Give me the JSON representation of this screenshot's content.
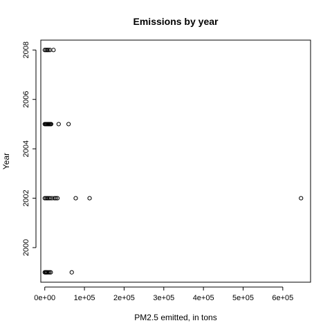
{
  "chart_data": {
    "type": "scatter",
    "title": "Emissions by year",
    "xlabel": "PM2.5 emitted, in tons",
    "ylabel": "Year",
    "xlim": [
      -10000,
      670000
    ],
    "ylim": [
      1998.6,
      2008.4
    ],
    "x_ticks": [
      0,
      100000,
      200000,
      300000,
      400000,
      500000,
      600000
    ],
    "x_tick_labels": [
      "0e+00",
      "1e+05",
      "2e+05",
      "3e+05",
      "4e+05",
      "5e+05",
      "6e+05"
    ],
    "y_ticks": [
      2000,
      2002,
      2004,
      2006,
      2008
    ],
    "y_tick_labels": [
      "2000",
      "2002",
      "2004",
      "2006",
      "2008"
    ],
    "grid": false,
    "points": [
      {
        "x": 0,
        "y": 1999
      },
      {
        "x": 2000,
        "y": 1999
      },
      {
        "x": 4000,
        "y": 1999
      },
      {
        "x": 6000,
        "y": 1999
      },
      {
        "x": 9000,
        "y": 1999
      },
      {
        "x": 12000,
        "y": 1999
      },
      {
        "x": 15000,
        "y": 1999
      },
      {
        "x": 68000,
        "y": 1999
      },
      {
        "x": 0,
        "y": 2002
      },
      {
        "x": 3000,
        "y": 2002
      },
      {
        "x": 6000,
        "y": 2002
      },
      {
        "x": 9000,
        "y": 2002
      },
      {
        "x": 13000,
        "y": 2002
      },
      {
        "x": 18000,
        "y": 2002
      },
      {
        "x": 24000,
        "y": 2002
      },
      {
        "x": 28000,
        "y": 2002
      },
      {
        "x": 32000,
        "y": 2002
      },
      {
        "x": 78000,
        "y": 2002
      },
      {
        "x": 113000,
        "y": 2002
      },
      {
        "x": 646000,
        "y": 2002
      },
      {
        "x": 0,
        "y": 2005
      },
      {
        "x": 2000,
        "y": 2005
      },
      {
        "x": 4000,
        "y": 2005
      },
      {
        "x": 6000,
        "y": 2005
      },
      {
        "x": 8000,
        "y": 2005
      },
      {
        "x": 10000,
        "y": 2005
      },
      {
        "x": 12000,
        "y": 2005
      },
      {
        "x": 14000,
        "y": 2005
      },
      {
        "x": 16000,
        "y": 2005
      },
      {
        "x": 35000,
        "y": 2005
      },
      {
        "x": 60000,
        "y": 2005
      },
      {
        "x": 0,
        "y": 2008
      },
      {
        "x": 3000,
        "y": 2008
      },
      {
        "x": 6000,
        "y": 2008
      },
      {
        "x": 9000,
        "y": 2008
      },
      {
        "x": 13000,
        "y": 2008
      },
      {
        "x": 22000,
        "y": 2008
      }
    ]
  }
}
